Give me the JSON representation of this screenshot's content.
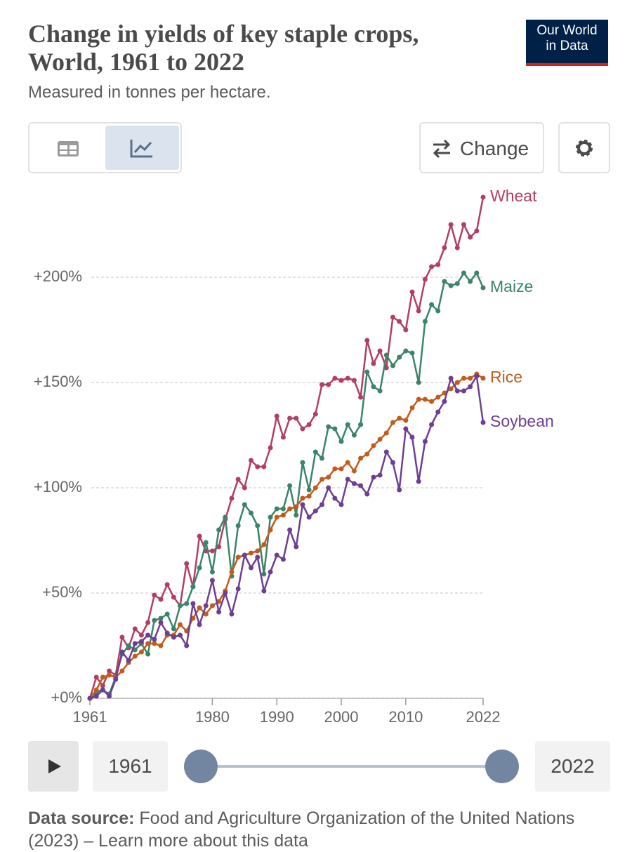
{
  "header": {
    "logo_line1": "Our World",
    "logo_line2": "in Data"
  },
  "controls": {
    "change": "Change",
    "timeline_start": "1961",
    "timeline_end": "2022"
  },
  "footer": {
    "source_label": "Data source:",
    "source_text": "Food and Agriculture Organization of the United Nations (2023) – Learn more about this data"
  },
  "chart_data": {
    "type": "line",
    "title": "Change in yields of key staple crops, World, 1961 to 2022",
    "subtitle": "Measured in tonnes per hectare.",
    "x": [
      1961,
      1962,
      1963,
      1964,
      1965,
      1966,
      1967,
      1968,
      1969,
      1970,
      1971,
      1972,
      1973,
      1974,
      1975,
      1976,
      1977,
      1978,
      1979,
      1980,
      1981,
      1982,
      1983,
      1984,
      1985,
      1986,
      1987,
      1988,
      1989,
      1990,
      1991,
      1992,
      1993,
      1994,
      1995,
      1996,
      1997,
      1998,
      1999,
      2000,
      2001,
      2002,
      2003,
      2004,
      2005,
      2006,
      2007,
      2008,
      2009,
      2010,
      2011,
      2012,
      2013,
      2014,
      2015,
      2016,
      2017,
      2018,
      2019,
      2020,
      2021,
      2022
    ],
    "xlim": [
      1961,
      2022
    ],
    "xticks": [
      1961,
      1980,
      1990,
      2000,
      2010,
      2022
    ],
    "ylim": [
      0,
      240
    ],
    "yticks": [
      {
        "value": 0,
        "label": "+0%"
      },
      {
        "value": 50,
        "label": "+50%"
      },
      {
        "value": 100,
        "label": "+100%"
      },
      {
        "value": 150,
        "label": "+150%"
      },
      {
        "value": 200,
        "label": "+200%"
      }
    ],
    "grid": true,
    "series": [
      {
        "name": "Wheat",
        "color": "#b13f64",
        "values": [
          0,
          10,
          6,
          13,
          11,
          29,
          24,
          33,
          30,
          36,
          49,
          47,
          54,
          48,
          44,
          64,
          53,
          77,
          70,
          70,
          72,
          85,
          95,
          104,
          100,
          113,
          110,
          110,
          119,
          134,
          124,
          133,
          133,
          128,
          130,
          135,
          149,
          149,
          152,
          151,
          152,
          151,
          143,
          170,
          159,
          165,
          157,
          181,
          179,
          175,
          193,
          184,
          199,
          205,
          206,
          214,
          225,
          214,
          225,
          219,
          222,
          238
        ]
      },
      {
        "name": "Maize",
        "color": "#3a8468",
        "values": [
          0,
          3,
          4,
          2,
          10,
          21,
          25,
          23,
          26,
          21,
          37,
          38,
          40,
          33,
          44,
          45,
          53,
          62,
          74,
          60,
          80,
          86,
          58,
          82,
          92,
          88,
          82,
          59,
          86,
          90,
          90,
          101,
          87,
          112,
          99,
          117,
          114,
          129,
          128,
          122,
          130,
          125,
          130,
          155,
          148,
          146,
          163,
          158,
          162,
          165,
          164,
          150,
          179,
          187,
          184,
          198,
          196,
          197,
          202,
          198,
          202,
          195
        ]
      },
      {
        "name": "Rice",
        "color": "#c15c1c",
        "values": [
          0,
          4,
          10,
          11,
          10,
          13,
          17,
          20,
          22,
          26,
          26,
          25,
          30,
          30,
          35,
          32,
          38,
          43,
          40,
          44,
          46,
          51,
          60,
          67,
          68,
          69,
          70,
          73,
          80,
          86,
          87,
          90,
          91,
          95,
          96,
          100,
          104,
          105,
          109,
          109,
          112,
          108,
          114,
          116,
          120,
          123,
          126,
          131,
          133,
          132,
          138,
          142,
          142,
          141,
          143,
          145,
          147,
          150,
          152,
          152,
          154,
          152
        ]
      },
      {
        "name": "Soybean",
        "color": "#6d3e91",
        "values": [
          0,
          1,
          4,
          1,
          9,
          22,
          18,
          26,
          27,
          30,
          28,
          36,
          31,
          29,
          30,
          25,
          45,
          35,
          44,
          56,
          41,
          50,
          40,
          52,
          68,
          62,
          67,
          51,
          60,
          68,
          66,
          80,
          72,
          92,
          86,
          89,
          92,
          100,
          95,
          92,
          104,
          102,
          101,
          97,
          105,
          106,
          117,
          112,
          99,
          128,
          124,
          103,
          122,
          130,
          136,
          141,
          152,
          146,
          146,
          148,
          153,
          131
        ]
      }
    ]
  }
}
